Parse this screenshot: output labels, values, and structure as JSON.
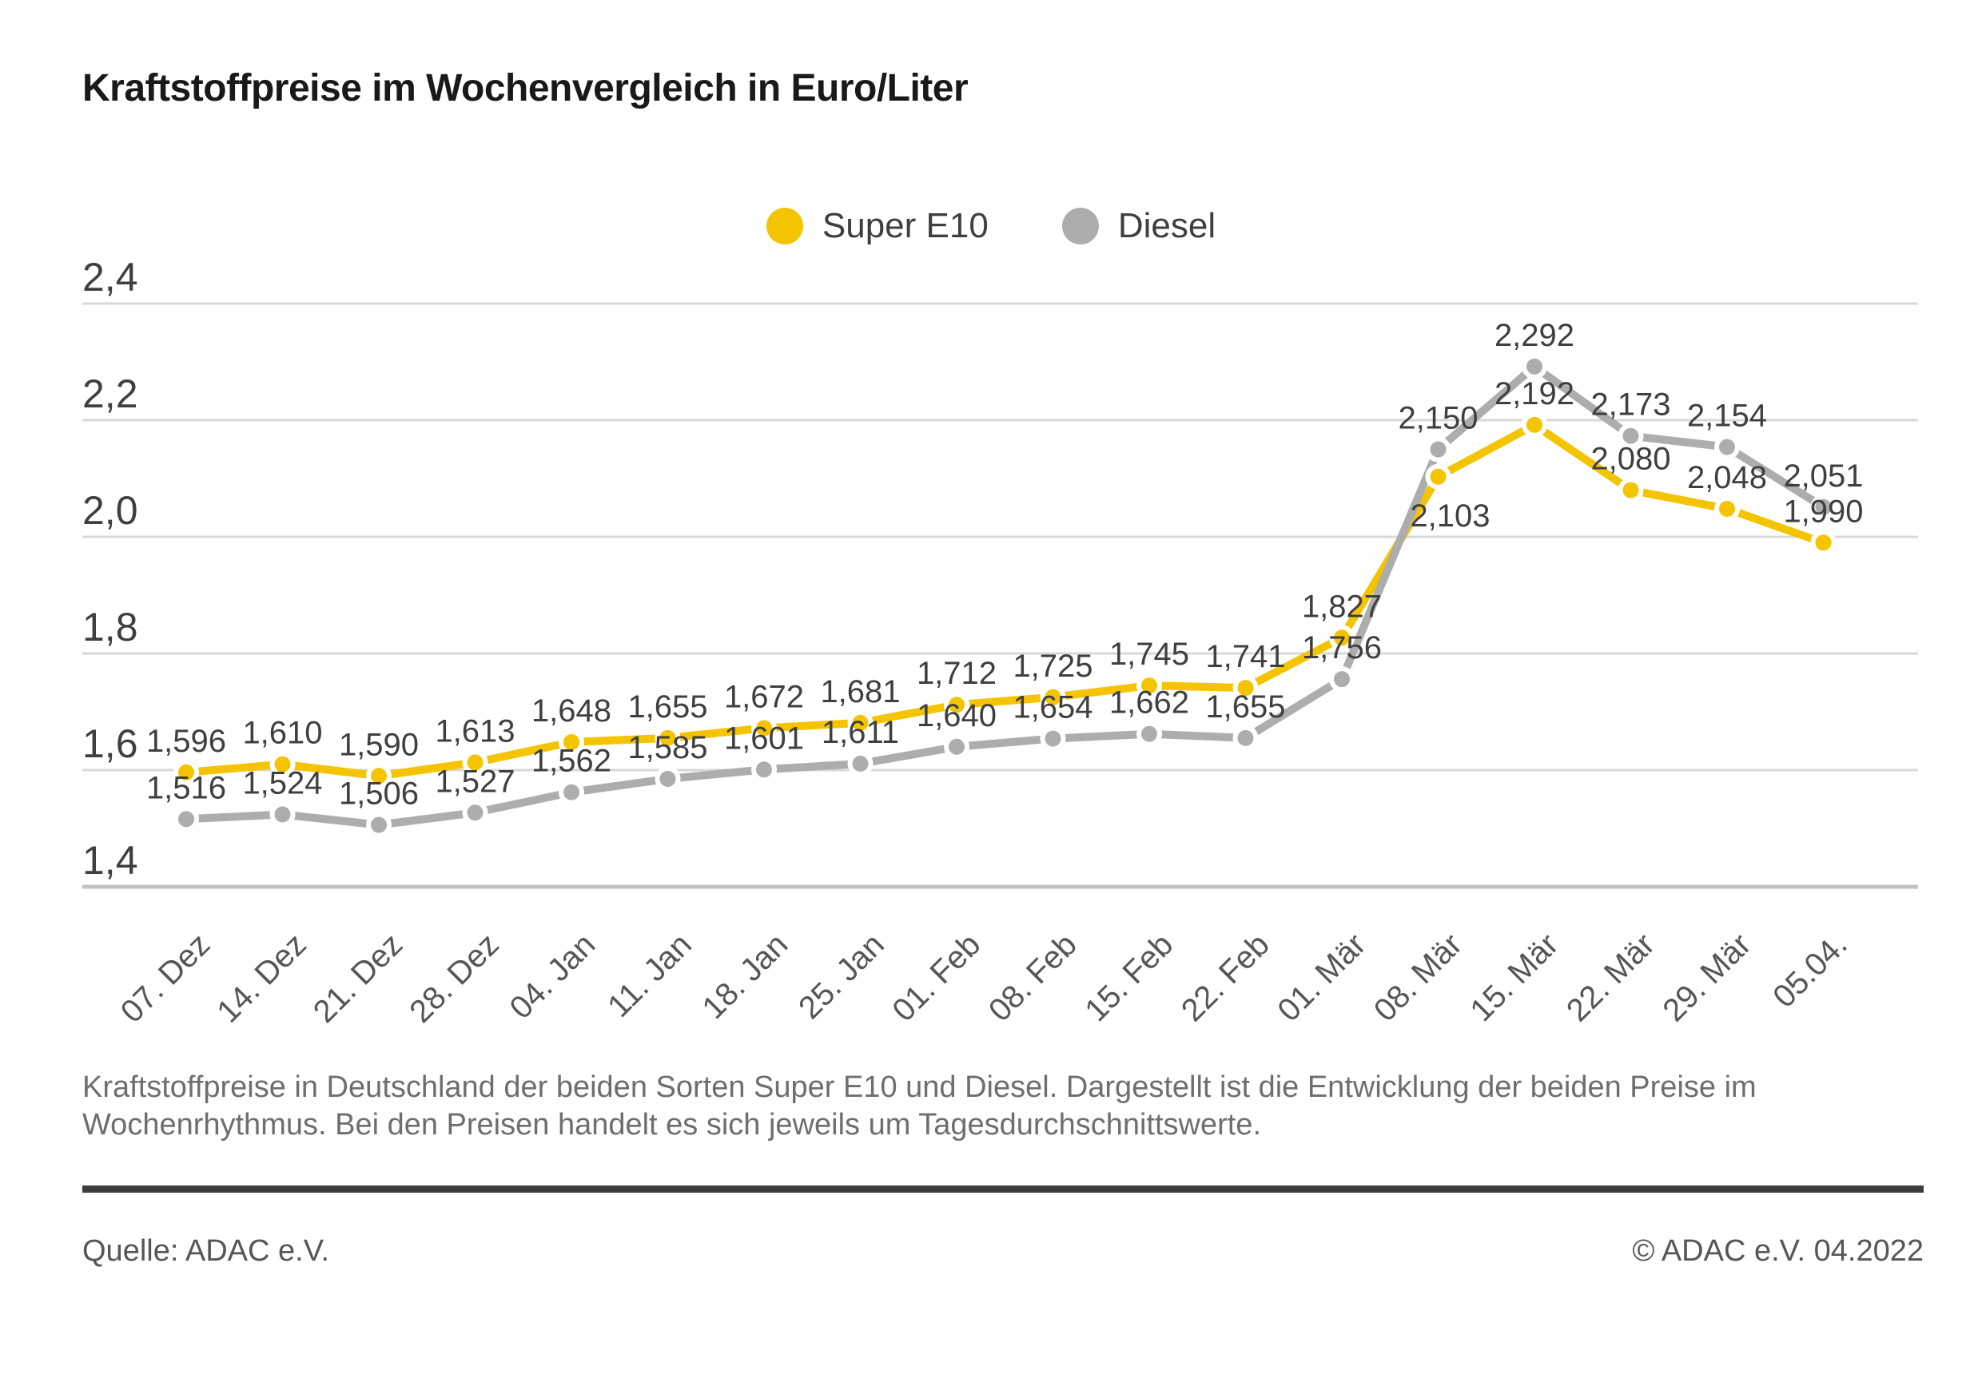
{
  "title": "Kraftstoffpreise im Wochenvergleich in Euro/Liter",
  "legend": {
    "items": [
      {
        "label": "Super E10",
        "color": "#F5C400"
      },
      {
        "label": "Diesel",
        "color": "#ADADAD"
      }
    ]
  },
  "chart_data": {
    "type": "line",
    "title": "Kraftstoffpreise im Wochenvergleich in Euro/Liter",
    "xlabel": "",
    "ylabel": "Euro/Liter",
    "ylim": [
      1.4,
      2.4
    ],
    "grid": true,
    "legend_position": "top-center",
    "yticks": [
      "2,4",
      "2,2",
      "2,0",
      "1,8",
      "1,6",
      "1,4"
    ],
    "categories": [
      "07. Dez",
      "14. Dez",
      "21. Dez",
      "28. Dez",
      "04. Jan",
      "11. Jan",
      "18. Jan",
      "25. Jan",
      "01. Feb",
      "08. Feb",
      "15. Feb",
      "22. Feb",
      "01. Mär",
      "08. Mär",
      "15. Mär",
      "22. Mär",
      "29. Mär",
      "05.04."
    ],
    "series": [
      {
        "name": "Super E10",
        "color": "#F5C400",
        "values": [
          1.596,
          1.61,
          1.59,
          1.613,
          1.648,
          1.655,
          1.672,
          1.681,
          1.712,
          1.725,
          1.745,
          1.741,
          1.827,
          2.103,
          2.192,
          2.08,
          2.048,
          1.99
        ]
      },
      {
        "name": "Diesel",
        "color": "#ADADAD",
        "values": [
          1.516,
          1.524,
          1.506,
          1.527,
          1.562,
          1.585,
          1.601,
          1.611,
          1.64,
          1.654,
          1.662,
          1.655,
          1.756,
          2.15,
          2.292,
          2.173,
          2.154,
          2.051
        ]
      }
    ],
    "value_label_format": "0,000 (decimal comma, 3 places)"
  },
  "caption": {
    "line1": "Kraftstoffpreise in Deutschland der beiden Sorten Super E10 und Diesel. Dargestellt ist die Entwicklung der beiden Preise im",
    "line2": "Wochenrhythmus. Bei den Preisen handelt es sich jeweils um Tagesdurchschnittswerte."
  },
  "footer": {
    "source": "Quelle: ADAC e.V.",
    "copyright": "© ADAC e.V. 04.2022"
  }
}
